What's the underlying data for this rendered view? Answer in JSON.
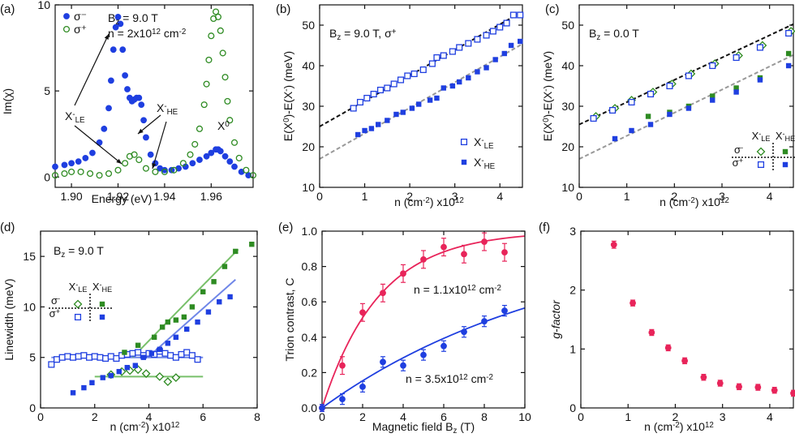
{
  "colors": {
    "blue": "#1f3fe0",
    "green": "#2e8b22",
    "red": "#e8245a",
    "gray": "#999999",
    "black": "#111111",
    "lightblue": "#6f86e8",
    "lightgreen": "#78c06a"
  },
  "chart_data": [
    {
      "panel": "(a)",
      "type": "line",
      "xlabel": "Energy (eV)",
      "ylabel": "Im(χ)",
      "xlim": [
        1.893,
        1.978
      ],
      "ylim": [
        -0.6,
        10
      ],
      "xticks": [
        1.9,
        1.92,
        1.94,
        1.96
      ],
      "xtick_labels": [
        "1.90",
        "1.92",
        "1.94",
        "1.96"
      ],
      "yticks": [
        0,
        5,
        10
      ],
      "ytick_labels": [
        "0",
        "5",
        "10"
      ],
      "legend": [
        "σ⁻",
        "σ⁺"
      ],
      "params": [
        "B",
        "z",
        " = 9.0 T",
        "n = 2x10",
        "12",
        " cm",
        "-2"
      ],
      "labels": {
        "xle": [
          "X",
          "-",
          "LE"
        ],
        "xhe": [
          "X",
          "-",
          "HE"
        ],
        "x0": [
          "X",
          "0"
        ]
      },
      "series": [
        {
          "name": "σ⁻",
          "style": "filled-circle",
          "color": "blue",
          "x": [
            1.893,
            1.897,
            1.9,
            1.903,
            1.906,
            1.909,
            1.912,
            1.914,
            1.916,
            1.917,
            1.918,
            1.919,
            1.92,
            1.921,
            1.922,
            1.923,
            1.924,
            1.925,
            1.926,
            1.927,
            1.928,
            1.929,
            1.93,
            1.931,
            1.932,
            1.934,
            1.936,
            1.938,
            1.94,
            1.943,
            1.946,
            1.949,
            1.952,
            1.955,
            1.958,
            1.96,
            1.962,
            1.963,
            1.964,
            1.966,
            1.968,
            1.97,
            1.973,
            1.976
          ],
          "y": [
            0.6,
            0.7,
            0.8,
            0.9,
            1.1,
            1.4,
            2.0,
            2.8,
            4.0,
            5.6,
            7.4,
            8.7,
            9.3,
            8.9,
            7.4,
            5.9,
            5.1,
            4.6,
            4.4,
            4.5,
            4.6,
            4.6,
            4.2,
            3.3,
            2.3,
            1.3,
            0.8,
            0.5,
            0.4,
            0.4,
            0.5,
            0.6,
            0.8,
            1.0,
            1.2,
            1.4,
            1.6,
            1.6,
            1.5,
            1.2,
            0.9,
            0.6,
            0.3,
            0.1
          ]
        },
        {
          "name": "σ⁺",
          "style": "open-circle",
          "color": "green",
          "x": [
            1.893,
            1.897,
            1.9,
            1.904,
            1.908,
            1.912,
            1.916,
            1.92,
            1.923,
            1.925,
            1.927,
            1.929,
            1.932,
            1.936,
            1.94,
            1.944,
            1.948,
            1.951,
            1.953,
            1.955,
            1.957,
            1.958,
            1.959,
            1.96,
            1.961,
            1.962,
            1.963,
            1.964,
            1.965,
            1.966,
            1.967,
            1.968,
            1.97,
            1.972,
            1.975,
            1.978
          ],
          "y": [
            0.1,
            0.2,
            0.3,
            0.3,
            0.2,
            0.1,
            0.2,
            0.4,
            0.8,
            1.2,
            1.3,
            1.0,
            0.5,
            0.3,
            0.3,
            0.4,
            0.8,
            1.3,
            1.9,
            2.8,
            4.2,
            5.4,
            6.8,
            8.2,
            9.2,
            9.6,
            9.3,
            8.5,
            7.2,
            5.8,
            4.4,
            3.3,
            2.0,
            1.1,
            0.4,
            0.1
          ]
        }
      ]
    },
    {
      "panel": "(b)",
      "type": "scatter",
      "title": [
        "B",
        "z",
        " = 9.0 T, σ",
        "+"
      ],
      "xlabel": "n (cm⁻²) x10¹²",
      "ylabel": "E(X⁰)-E(X⁻)  (meV)",
      "xlim": [
        0,
        4.5
      ],
      "ylim": [
        10,
        55
      ],
      "xticks": [
        0,
        1,
        2,
        3,
        4
      ],
      "xtick_labels": [
        "0",
        "1",
        "2",
        "3",
        "4"
      ],
      "yticks": [
        10,
        20,
        30,
        40,
        50
      ],
      "ytick_labels": [
        "10",
        "20",
        "30",
        "40",
        "50"
      ],
      "legend": [
        [
          "X",
          "-",
          "LE"
        ],
        [
          "X",
          "-",
          "HE"
        ]
      ],
      "series": [
        {
          "name": "X⁻LE",
          "style": "open-square",
          "color": "blue",
          "x": [
            0.75,
            0.9,
            1.05,
            1.2,
            1.35,
            1.5,
            1.65,
            1.8,
            1.95,
            2.1,
            2.3,
            2.5,
            2.6,
            2.75,
            2.95,
            3.1,
            3.3,
            3.5,
            3.7,
            3.85,
            4.0,
            4.15,
            4.3,
            4.45
          ],
          "y": [
            29.5,
            31,
            32,
            33,
            34,
            34.5,
            35.5,
            36.5,
            37.5,
            38,
            39,
            40.5,
            42,
            42.5,
            43.5,
            44.5,
            45.5,
            46.5,
            47.5,
            48.5,
            49.5,
            50.5,
            52.5,
            52.5
          ]
        },
        {
          "name": "X⁻HE",
          "style": "filled-square",
          "color": "blue",
          "x": [
            0.85,
            1.0,
            1.15,
            1.3,
            1.5,
            1.7,
            1.85,
            2.05,
            2.2,
            2.45,
            2.6,
            2.75,
            2.95,
            3.1,
            3.3,
            3.5,
            3.7,
            3.9,
            4.1,
            4.25,
            4.45
          ],
          "y": [
            23,
            24,
            24.5,
            25.5,
            26.5,
            28,
            28.5,
            29.5,
            30.5,
            31.5,
            32,
            34.5,
            35,
            36,
            37,
            38.5,
            39.5,
            41.5,
            43,
            45,
            46
          ]
        }
      ],
      "fits": [
        {
          "color": "black",
          "dash": true,
          "slope": 6.3,
          "intercept": 25,
          "x": [
            0,
            4.5
          ]
        },
        {
          "color": "gray",
          "dash": true,
          "slope": 6.3,
          "intercept": 17,
          "x": [
            0,
            4.5
          ]
        }
      ]
    },
    {
      "panel": "(c)",
      "type": "scatter",
      "title": [
        "B",
        "z",
        " = 0.0 T"
      ],
      "xlabel": "n (cm⁻²) x10¹²",
      "ylabel": "E(X⁰)-E(X⁻)  (meV)",
      "xlim": [
        0,
        4.5
      ],
      "ylim": [
        10,
        55
      ],
      "xticks": [
        0,
        1,
        2,
        3,
        4
      ],
      "xtick_labels": [
        "0",
        "1",
        "2",
        "3",
        "4"
      ],
      "yticks": [
        10,
        20,
        30,
        40,
        50
      ],
      "ytick_labels": [
        "10",
        "20",
        "30",
        "40",
        "50"
      ],
      "key": {
        "cols": [
          [
            "X",
            "-",
            "LE"
          ],
          [
            "X",
            "-",
            "HE"
          ]
        ],
        "rows": [
          [
            "σ",
            "-"
          ],
          [
            "σ",
            "+"
          ]
        ]
      },
      "series": [
        {
          "name": "X⁻LE σ⁻",
          "style": "open-diamond",
          "color": "green",
          "x": [
            0.35,
            0.75,
            1.1,
            1.55,
            1.95,
            2.35,
            2.85,
            3.35,
            3.85,
            4.45
          ],
          "y": [
            27.5,
            29.5,
            31.5,
            33.5,
            35.5,
            38,
            40.5,
            42.5,
            45,
            48.5
          ]
        },
        {
          "name": "X⁻LE σ⁺",
          "style": "open-square",
          "color": "blue",
          "x": [
            0.3,
            0.7,
            1.1,
            1.5,
            1.9,
            2.3,
            2.8,
            3.3,
            3.8,
            4.4
          ],
          "y": [
            27,
            29,
            31,
            33,
            35,
            37.5,
            40,
            42,
            44.5,
            48
          ]
        },
        {
          "name": "X⁻HE σ⁻",
          "style": "filled-square",
          "color": "green",
          "x": [
            1.45,
            1.9,
            2.3,
            2.8,
            3.3,
            3.8,
            4.4
          ],
          "y": [
            27.5,
            28.5,
            30,
            32.5,
            34.5,
            37,
            43
          ]
        },
        {
          "name": "X⁻HE σ⁺",
          "style": "filled-square",
          "color": "blue",
          "x": [
            0.75,
            1.1,
            1.5,
            1.9,
            2.3,
            2.8,
            3.3,
            3.8,
            4.4
          ],
          "y": [
            22,
            24,
            25.5,
            28,
            29.5,
            31.5,
            33.5,
            36.5,
            40
          ]
        }
      ],
      "fits": [
        {
          "color": "black",
          "dash": true,
          "slope": 5.5,
          "intercept": 25.5,
          "x": [
            0,
            4.5
          ]
        },
        {
          "color": "gray",
          "dash": true,
          "slope": 5.7,
          "intercept": 17,
          "x": [
            0,
            4.5
          ]
        }
      ]
    },
    {
      "panel": "(d)",
      "type": "scatter",
      "title": [
        "B",
        "z",
        " = 9.0 T"
      ],
      "xlabel": "n (cm⁻²) x10¹²",
      "ylabel": "Linewidth (meV)",
      "xlim": [
        0,
        8
      ],
      "ylim": [
        0,
        17.5
      ],
      "xticks": [
        0,
        2,
        4,
        6,
        8
      ],
      "xtick_labels": [
        "0",
        "2",
        "4",
        "6",
        "8"
      ],
      "yticks": [
        0,
        5,
        10,
        15
      ],
      "ytick_labels": [
        "0",
        "5",
        "10",
        "15"
      ],
      "key": {
        "cols": [
          [
            "X",
            "-",
            "LE"
          ],
          [
            "X",
            "-",
            "HE"
          ]
        ],
        "rows": [
          [
            "σ",
            "-"
          ],
          [
            "σ",
            "+"
          ]
        ]
      },
      "series": [
        {
          "name": "X⁻LE σ⁺",
          "style": "open-square",
          "color": "blue",
          "x": [
            0.4,
            0.6,
            0.8,
            1.0,
            1.2,
            1.4,
            1.6,
            1.8,
            2.0,
            2.2,
            2.4,
            2.6,
            2.8,
            3.0,
            3.2,
            3.4,
            3.6,
            3.8,
            4.0,
            4.2,
            4.4,
            4.6,
            4.8,
            5.0,
            5.2,
            5.4,
            5.6,
            5.8
          ],
          "y": [
            4.3,
            4.8,
            5.0,
            5.1,
            5.0,
            5.1,
            5.2,
            5.0,
            5.1,
            5.0,
            4.9,
            5.1,
            4.9,
            5.2,
            5.3,
            5.4,
            5.5,
            5.2,
            5.4,
            5.3,
            5.6,
            5.4,
            5.2,
            5.0,
            5.3,
            5.5,
            5.2,
            4.8
          ]
        },
        {
          "name": "X⁻LE σ⁻",
          "style": "open-diamond",
          "color": "green",
          "x": [
            2.6,
            3.0,
            3.3,
            3.6,
            3.9,
            4.4,
            4.7,
            5.0
          ],
          "y": [
            3.3,
            3.6,
            3.7,
            3.8,
            3.4,
            3.1,
            2.6,
            3.0
          ]
        },
        {
          "name": "X⁻HE σ⁻",
          "style": "filled-square",
          "color": "green",
          "x": [
            3.1,
            3.6,
            4.2,
            4.5,
            4.7,
            5.0,
            5.3,
            5.6,
            6.0,
            6.4,
            6.8,
            7.2,
            7.8
          ],
          "y": [
            5.5,
            6.2,
            7.0,
            8.0,
            8.5,
            8.7,
            9.0,
            10.0,
            11.5,
            12.5,
            14.0,
            15.5,
            16.2
          ]
        },
        {
          "name": "X⁻HE σ⁺",
          "style": "filled-square",
          "color": "blue",
          "x": [
            1.2,
            1.6,
            1.9,
            2.3,
            2.6,
            2.9,
            3.2,
            3.5,
            3.8,
            4.1,
            4.4,
            4.7,
            5.0,
            5.4,
            5.8,
            6.2,
            6.6,
            7.0
          ],
          "y": [
            1.5,
            2.0,
            2.5,
            3.0,
            3.2,
            3.6,
            4.0,
            4.2,
            5.0,
            5.4,
            5.8,
            6.4,
            7.0,
            7.8,
            8.5,
            9.5,
            10.5,
            11.0
          ]
        }
      ],
      "fits": [
        {
          "color": "lightblue",
          "x": [
            0.4,
            6.0
          ],
          "y": [
            5.0,
            5.0
          ]
        },
        {
          "color": "lightgreen",
          "x": [
            2.0,
            6.0
          ],
          "y": [
            3.1,
            3.1
          ]
        },
        {
          "color": "lightgreen",
          "x": [
            3.4,
            7.3
          ],
          "y": [
            5.0,
            15.7
          ]
        },
        {
          "color": "lightblue",
          "x": [
            4.0,
            7.2
          ],
          "y": [
            5.1,
            12.7
          ]
        }
      ]
    },
    {
      "panel": "(e)",
      "type": "scatter",
      "xlabel": [
        "Magnetic field B",
        "z",
        " (T)"
      ],
      "ylabel": "Trion contrast, C",
      "xlim": [
        0,
        10
      ],
      "ylim": [
        0,
        1.0
      ],
      "xticks": [
        0,
        2,
        4,
        6,
        8,
        10
      ],
      "xtick_labels": [
        "0",
        "2",
        "4",
        "6",
        "8",
        "10"
      ],
      "yticks": [
        0,
        0.2,
        0.4,
        0.6,
        0.8,
        1.0
      ],
      "ytick_labels": [
        "0.0",
        "0.2",
        "0.4",
        "0.6",
        "0.8",
        "1.0"
      ],
      "series": [
        {
          "name": "n = 1.1x10¹² cm⁻²",
          "label": [
            "n = 1.1x10",
            "12",
            " cm",
            "-2"
          ],
          "style": "filled-circle-err",
          "color": "red",
          "x": [
            0,
            1,
            2,
            3,
            4,
            5,
            6,
            7,
            8,
            9
          ],
          "y": [
            0,
            0.24,
            0.54,
            0.65,
            0.76,
            0.84,
            0.91,
            0.87,
            0.94,
            0.88
          ],
          "err": [
            0.02,
            0.05,
            0.05,
            0.05,
            0.05,
            0.05,
            0.05,
            0.05,
            0.05,
            0.05
          ]
        },
        {
          "name": "n = 3.5x10¹² cm⁻²",
          "label": [
            "n = 3.5x10",
            "12",
            " cm",
            "-2"
          ],
          "style": "filled-circle-err",
          "color": "blue",
          "x": [
            0,
            1,
            2,
            3,
            4,
            5,
            6,
            7,
            8,
            9
          ],
          "y": [
            0,
            0.05,
            0.12,
            0.26,
            0.24,
            0.3,
            0.35,
            0.43,
            0.49,
            0.55
          ],
          "err": [
            0.02,
            0.03,
            0.03,
            0.03,
            0.03,
            0.03,
            0.03,
            0.03,
            0.03,
            0.03
          ]
        }
      ],
      "fits": [
        {
          "color": "red",
          "model": "1-exp(-x/2.8)",
          "x": [
            0,
            10
          ]
        },
        {
          "color": "blue",
          "model": "1-exp(-x/12)",
          "x": [
            0,
            10
          ]
        }
      ]
    },
    {
      "panel": "(f)",
      "type": "scatter",
      "xlabel": "n (cm⁻²) x10¹²",
      "ylabel": "g-factor",
      "xlim": [
        0,
        4.5
      ],
      "ylim": [
        0,
        3
      ],
      "xticks": [
        0,
        1,
        2,
        3,
        4
      ],
      "xtick_labels": [
        "0",
        "1",
        "2",
        "3",
        "4"
      ],
      "yticks": [
        0,
        1,
        2,
        3
      ],
      "ytick_labels": [
        "0",
        "1",
        "2",
        "3"
      ],
      "series": [
        {
          "name": "g-factor",
          "style": "filled-circle-err",
          "color": "red",
          "x": [
            0.7,
            1.1,
            1.5,
            1.85,
            2.2,
            2.6,
            2.95,
            3.35,
            3.75,
            4.1,
            4.5
          ],
          "y": [
            2.77,
            1.78,
            1.28,
            1.02,
            0.8,
            0.52,
            0.42,
            0.36,
            0.35,
            0.3,
            0.25
          ],
          "err": [
            0.06,
            0.05,
            0.05,
            0.05,
            0.05,
            0.05,
            0.05,
            0.05,
            0.05,
            0.05,
            0.05
          ]
        }
      ]
    }
  ]
}
